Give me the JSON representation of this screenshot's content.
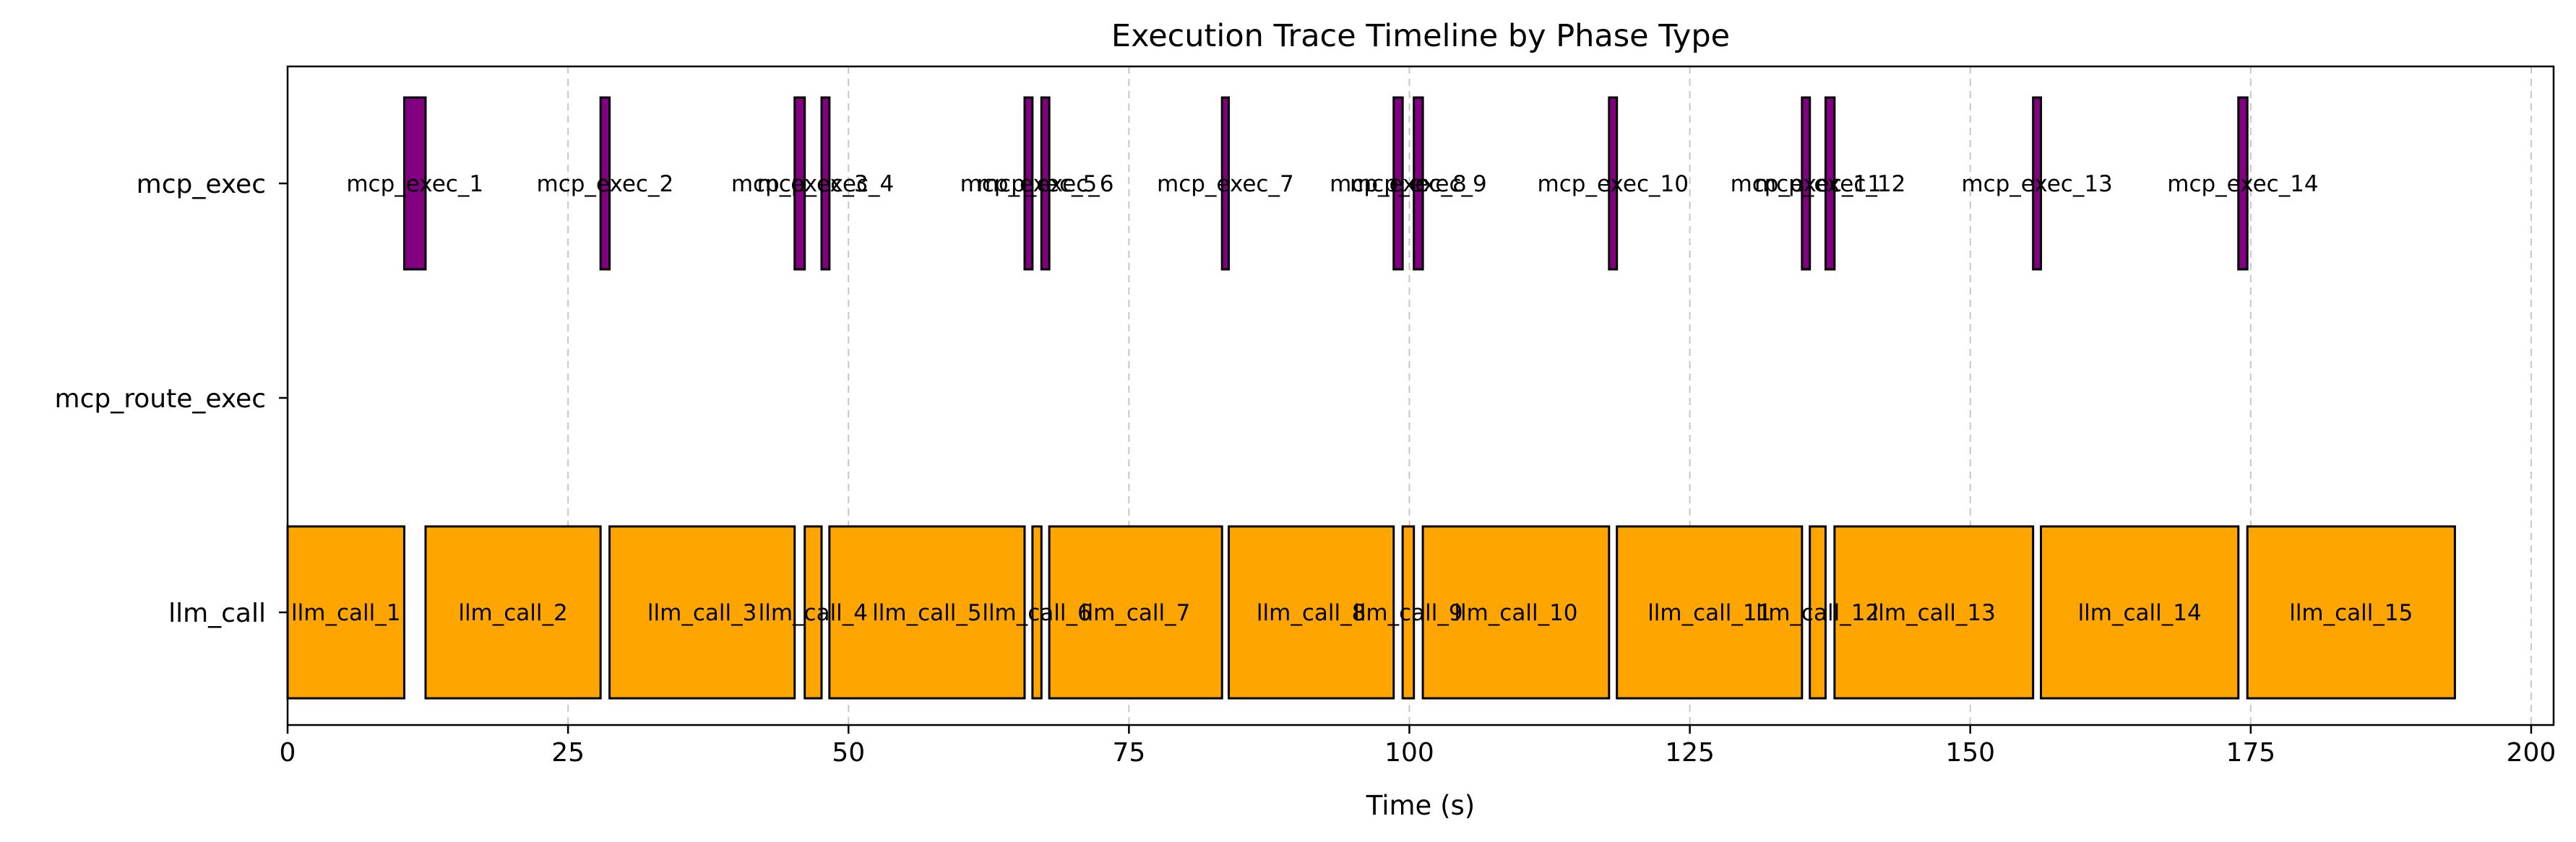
{
  "chart_data": {
    "type": "gantt",
    "title": "Execution Trace Timeline by Phase Type",
    "xlabel": "Time (s)",
    "ylabel": "",
    "xlim": [
      0,
      202
    ],
    "xticks": [
      0,
      25,
      50,
      75,
      100,
      125,
      150,
      175,
      200
    ],
    "grid": "x-dashed",
    "categories": [
      "mcp_exec",
      "mcp_route_exec",
      "llm_call"
    ],
    "colors": {
      "mcp_exec": "#800080",
      "llm_call": "#FFA500"
    },
    "series": [
      {
        "category": "mcp_exec",
        "bars": [
          {
            "label": "mcp_exec_1",
            "start": 10.4,
            "end": 12.3
          },
          {
            "label": "mcp_exec_2",
            "start": 27.9,
            "end": 28.7
          },
          {
            "label": "mcp_exec_3",
            "start": 45.2,
            "end": 46.1
          },
          {
            "label": "mcp_exec_4",
            "start": 47.6,
            "end": 48.3
          },
          {
            "label": "mcp_exec_5",
            "start": 65.7,
            "end": 66.4
          },
          {
            "label": "mcp_exec_6",
            "start": 67.2,
            "end": 67.9
          },
          {
            "label": "mcp_exec_7",
            "start": 83.3,
            "end": 83.9
          },
          {
            "label": "mcp_exec_8",
            "start": 98.6,
            "end": 99.4
          },
          {
            "label": "mcp_exec_9",
            "start": 100.4,
            "end": 101.2
          },
          {
            "label": "mcp_exec_10",
            "start": 117.8,
            "end": 118.5
          },
          {
            "label": "mcp_exec_11",
            "start": 135.0,
            "end": 135.7
          },
          {
            "label": "mcp_exec_12",
            "start": 137.1,
            "end": 137.9
          },
          {
            "label": "mcp_exec_13",
            "start": 155.6,
            "end": 156.3
          },
          {
            "label": "mcp_exec_14",
            "start": 173.9,
            "end": 174.7
          }
        ]
      },
      {
        "category": "mcp_route_exec",
        "bars": []
      },
      {
        "category": "llm_call",
        "bars": [
          {
            "label": "llm_call_1",
            "start": 0.0,
            "end": 10.4
          },
          {
            "label": "llm_call_2",
            "start": 12.3,
            "end": 27.9
          },
          {
            "label": "llm_call_3",
            "start": 28.7,
            "end": 45.2
          },
          {
            "label": "llm_call_4",
            "start": 46.1,
            "end": 47.6
          },
          {
            "label": "llm_call_5",
            "start": 48.3,
            "end": 65.7
          },
          {
            "label": "llm_call_6",
            "start": 66.4,
            "end": 67.2
          },
          {
            "label": "llm_call_7",
            "start": 67.9,
            "end": 83.3
          },
          {
            "label": "llm_call_8",
            "start": 83.9,
            "end": 98.6
          },
          {
            "label": "llm_call_9",
            "start": 99.4,
            "end": 100.4
          },
          {
            "label": "llm_call_10",
            "start": 101.2,
            "end": 117.8
          },
          {
            "label": "llm_call_11",
            "start": 118.5,
            "end": 135.0
          },
          {
            "label": "llm_call_12",
            "start": 135.7,
            "end": 137.1
          },
          {
            "label": "llm_call_13",
            "start": 137.9,
            "end": 155.6
          },
          {
            "label": "llm_call_14",
            "start": 156.3,
            "end": 173.9
          },
          {
            "label": "llm_call_15",
            "start": 174.7,
            "end": 193.2
          }
        ]
      }
    ]
  }
}
